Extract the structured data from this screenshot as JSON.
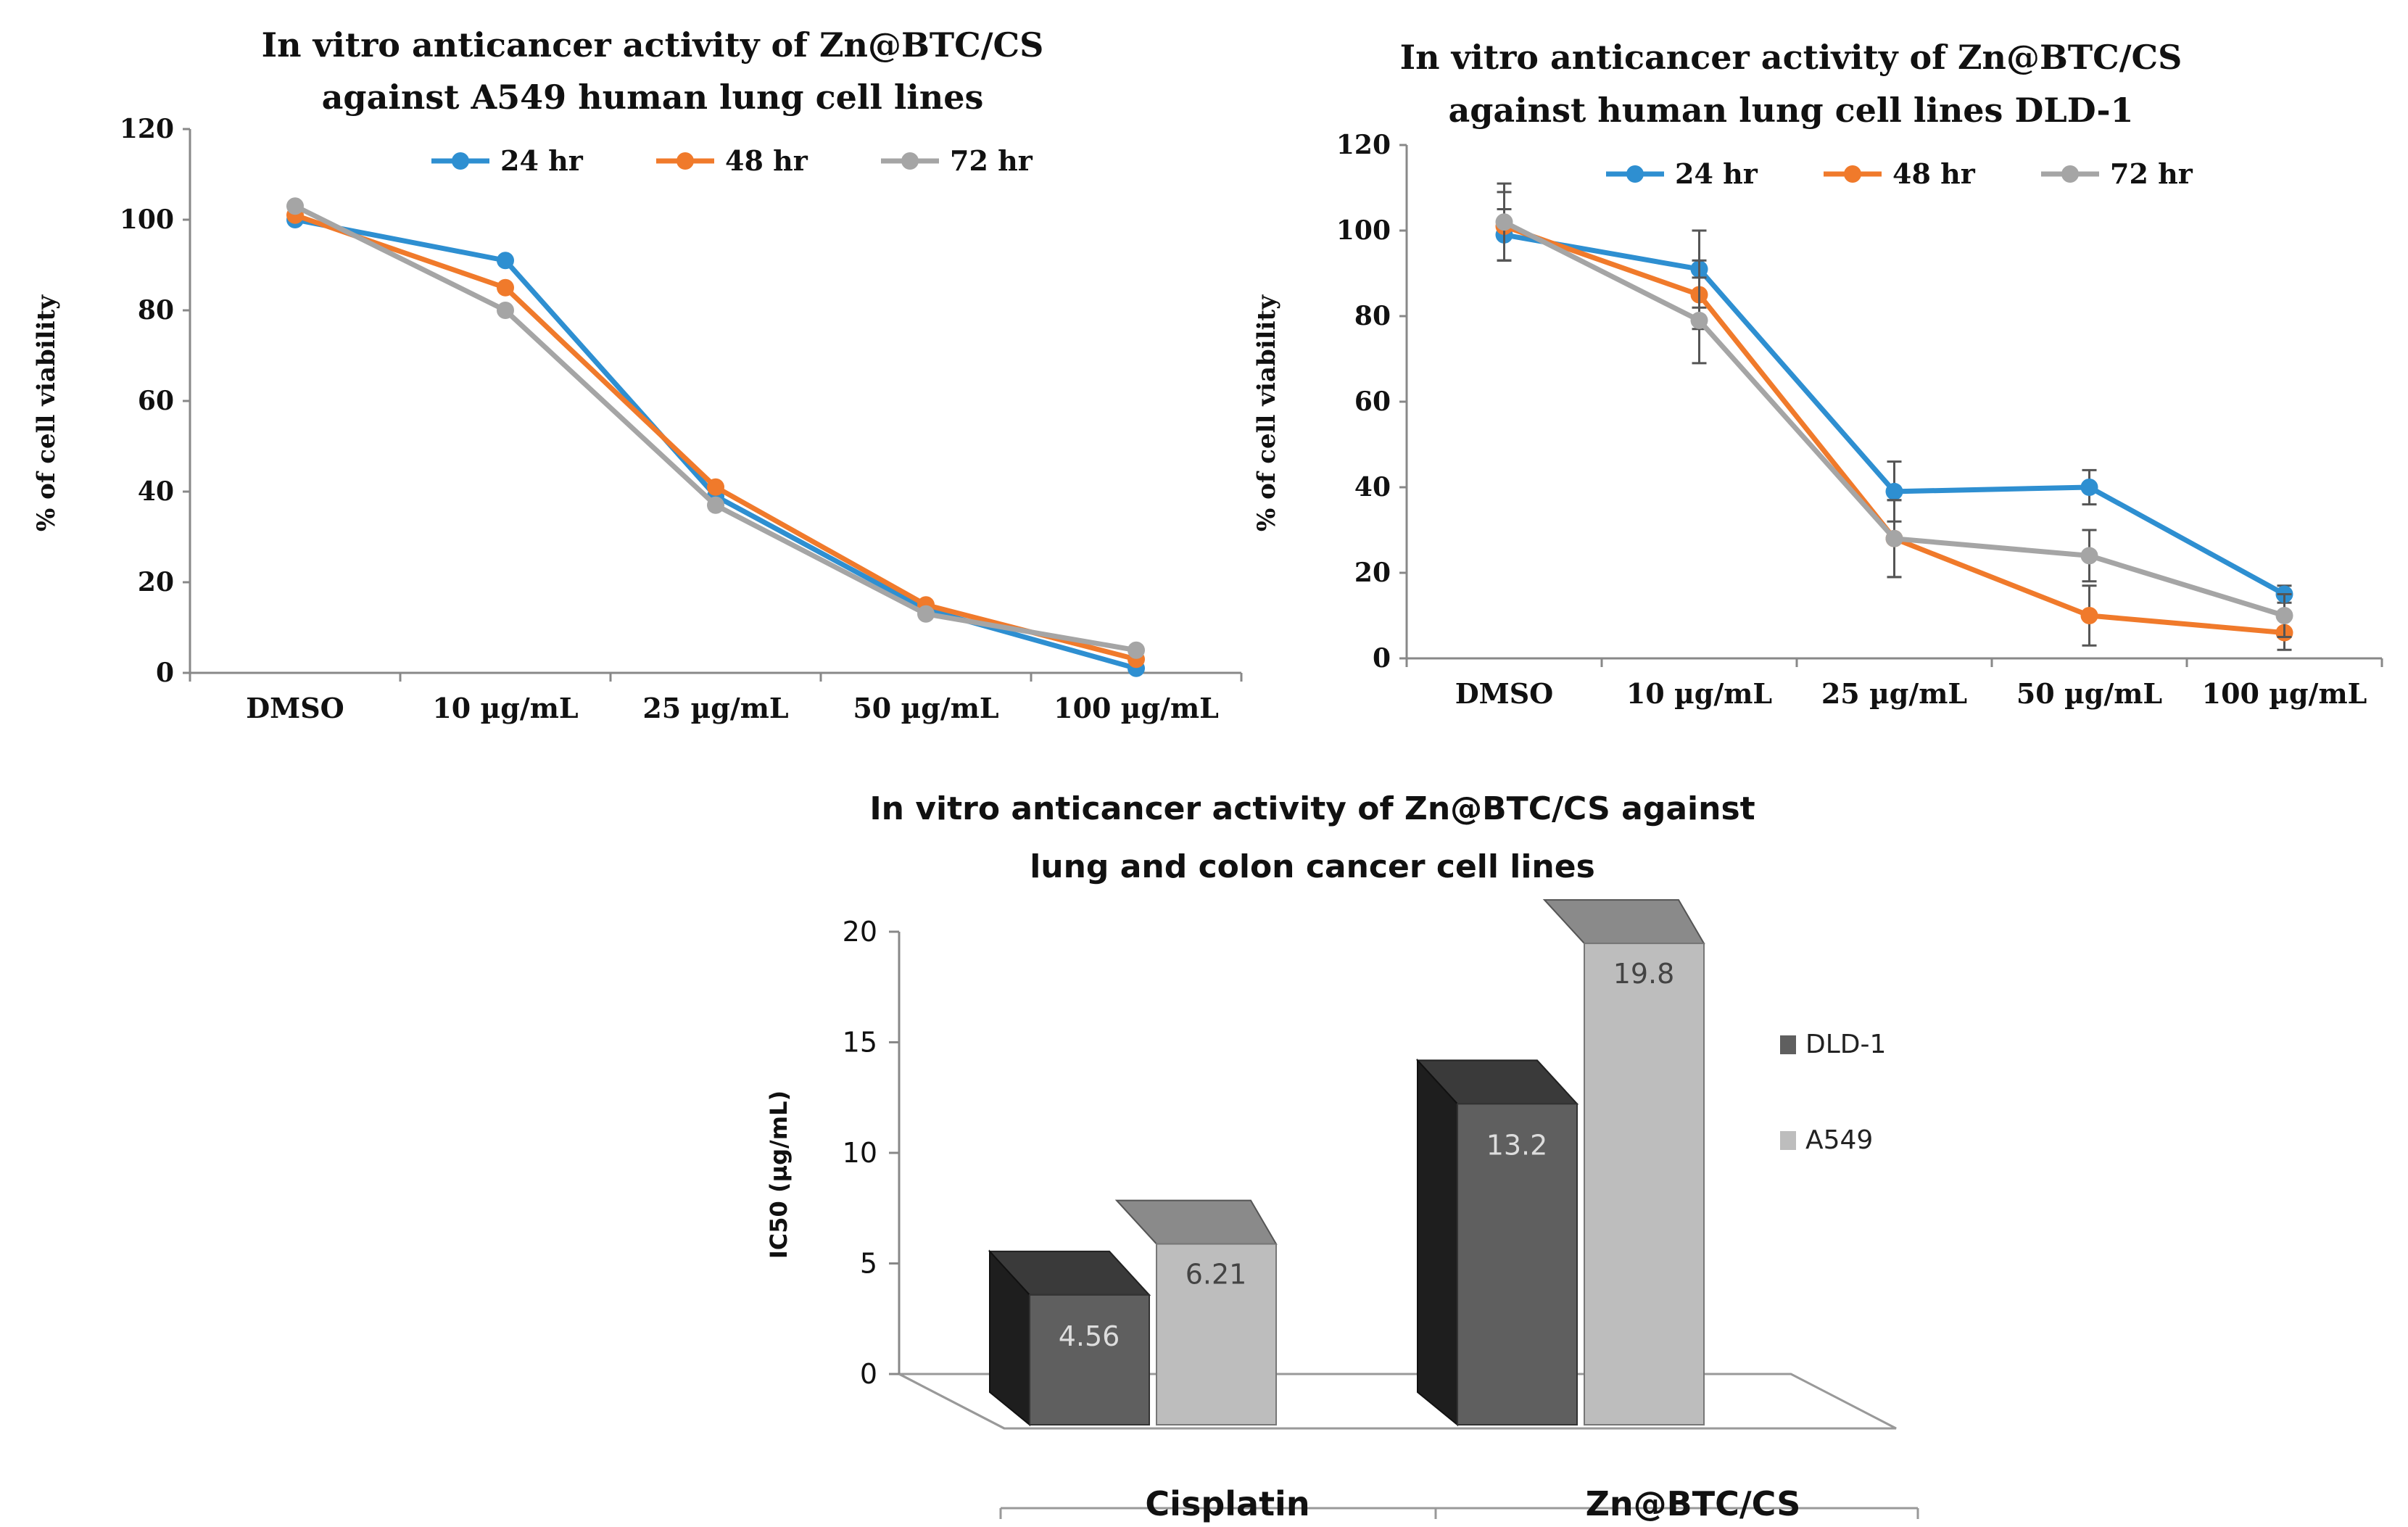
{
  "chart_data": [
    {
      "type": "line",
      "title_line1": "In vitro anticancer activity of Zn@BTC/CS",
      "title_line2": "against  A549 human lung cell lines",
      "ylabel": "% of cell viability",
      "ylim": [
        0,
        120
      ],
      "yticks": [
        "0",
        "20",
        "40",
        "60",
        "80",
        "100",
        "120"
      ],
      "categories": [
        "DMSO",
        "10 µg/mL",
        "25 µg/mL",
        "50 µg/mL",
        "100 µg/mL"
      ],
      "error_bars": false,
      "series": [
        {
          "name": "24 hr",
          "color": "#2e8fd1",
          "values": [
            100,
            91,
            39,
            14,
            1
          ]
        },
        {
          "name": "48 hr",
          "color": "#f07a2b",
          "values": [
            101,
            85,
            41,
            15,
            3
          ]
        },
        {
          "name": "72 hr",
          "color": "#a5a5a5",
          "values": [
            103,
            80,
            37,
            13,
            5
          ]
        }
      ]
    },
    {
      "type": "line",
      "title_line1": "In vitro anticancer activity of Zn@BTC/CS",
      "title_line2": "against human lung cell lines DLD-1",
      "ylabel": "% of cell viability",
      "ylim": [
        0,
        120
      ],
      "yticks": [
        "0",
        "20",
        "40",
        "60",
        "80",
        "100",
        "120"
      ],
      "categories": [
        "DMSO",
        "10 µg/mL",
        "25 µg/mL",
        "50 µg/mL",
        "100 µg/mL"
      ],
      "error_bars": true,
      "series": [
        {
          "name": "24 hr",
          "color": "#2e8fd1",
          "values": [
            99,
            91,
            39,
            40,
            15
          ],
          "errors": [
            6,
            9,
            7,
            4,
            2
          ]
        },
        {
          "name": "48 hr",
          "color": "#f07a2b",
          "values": [
            101,
            85,
            28,
            10,
            6
          ],
          "errors": [
            8,
            8,
            9,
            7,
            4
          ]
        },
        {
          "name": "72 hr",
          "color": "#a5a5a5",
          "values": [
            102,
            79,
            28,
            24,
            10
          ],
          "errors": [
            9,
            10,
            9,
            6,
            5
          ]
        }
      ]
    },
    {
      "type": "bar",
      "title_line1": "In vitro anticancer activity of Zn@BTC/CS  against",
      "title_line2": "lung and colon cancer cell lines",
      "ylabel": "IC50 (µg/mL)",
      "ylim": [
        0,
        20
      ],
      "yticks": [
        "0",
        "5",
        "10",
        "15",
        "20"
      ],
      "categories": [
        "Cisplatin",
        "Zn@BTC/CS"
      ],
      "series": [
        {
          "name": "DLD-1",
          "color": "#5f5f5f",
          "values": [
            4.56,
            13.2
          ],
          "labels": [
            "4.56",
            "13.2"
          ]
        },
        {
          "name": "A549",
          "color": "#bdbdbd",
          "values": [
            6.21,
            19.8
          ],
          "labels": [
            "6.21",
            "19.8"
          ]
        }
      ]
    }
  ]
}
